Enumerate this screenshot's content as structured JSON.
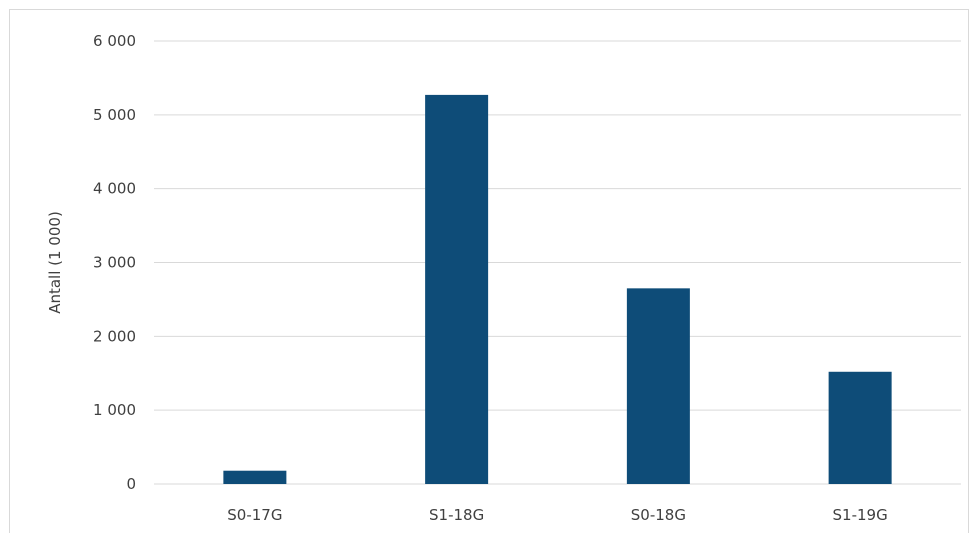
{
  "chart_data": {
    "type": "bar",
    "title": "",
    "xlabel": "",
    "ylabel": "Antall (1 000)",
    "categories": [
      "S0-17G",
      "S1-18G",
      "S0-18G",
      "S1-19G"
    ],
    "values": [
      180,
      5270,
      2650,
      1520
    ],
    "ylim": [
      0,
      6000
    ],
    "yticks": [
      0,
      1000,
      2000,
      3000,
      4000,
      5000,
      6000
    ],
    "ytick_labels": [
      "0",
      "1 000",
      "2 000",
      "3 000",
      "4 000",
      "5 000",
      "6 000"
    ],
    "grid": true,
    "legend": "none",
    "bar_color": "#0e4c78",
    "grid_color": "#d9d9d9"
  }
}
